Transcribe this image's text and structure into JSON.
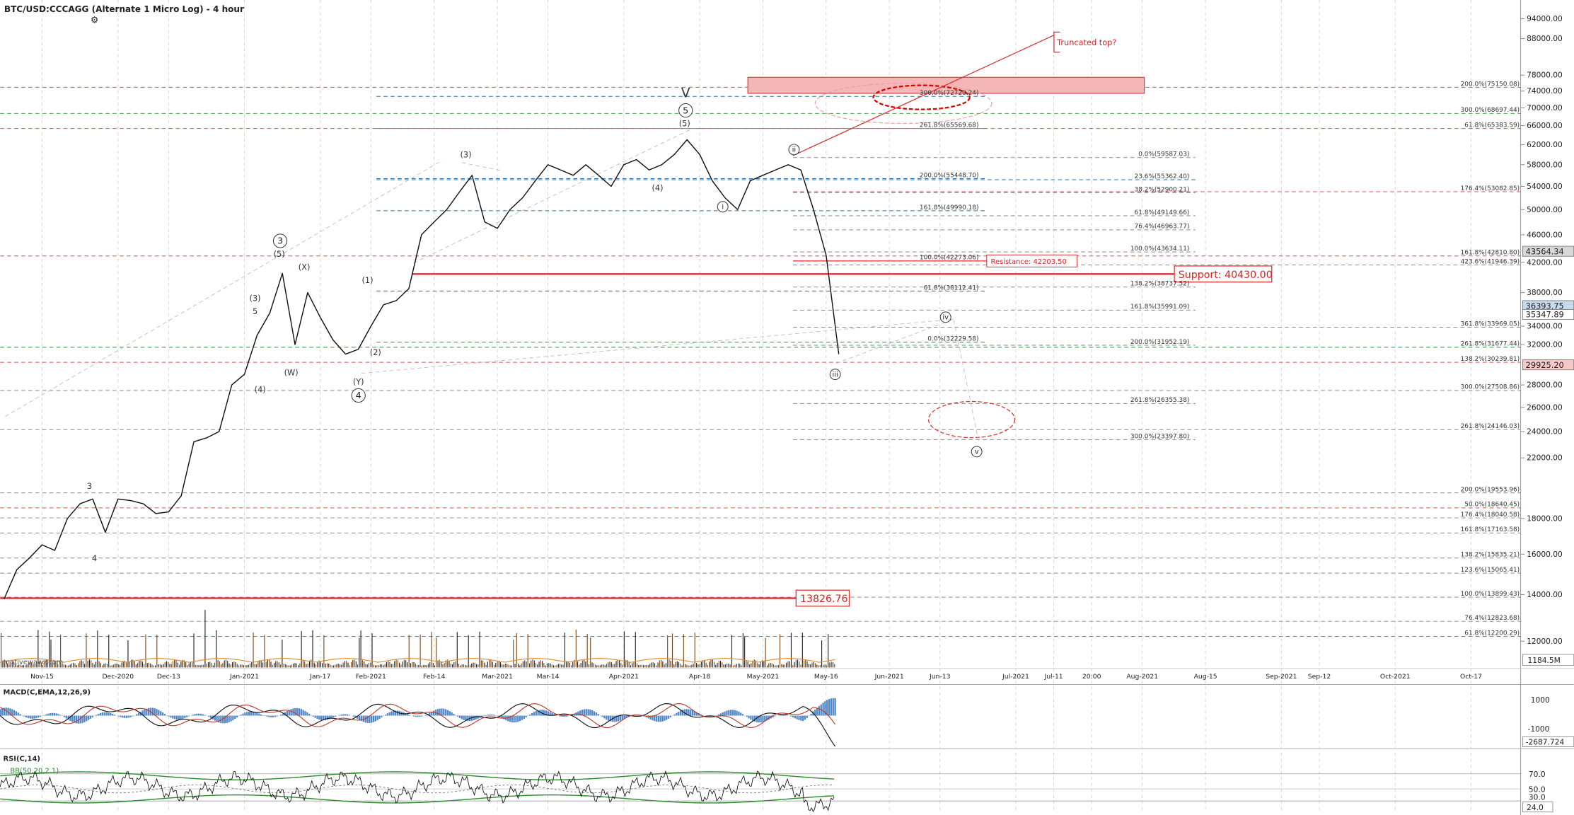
{
  "chart_data": {
    "type": "line",
    "title": "BTC/USD:CCCAGG (Alternate 1 Micro Log) - 4 hour",
    "log_scale": true,
    "grid": true,
    "color": "#111111",
    "categories": [
      null,
      null,
      null,
      "Nov-15",
      null,
      null,
      null,
      null,
      null,
      "Dec-2020",
      null,
      null,
      null,
      "Dec-13",
      null,
      null,
      null,
      null,
      null,
      "Jan-2021",
      null,
      null,
      null,
      null,
      null,
      "Jan-17",
      null,
      null,
      null,
      "Feb-2021",
      null,
      null,
      null,
      null,
      "Feb-14",
      null,
      null,
      null,
      null,
      "Mar-2021",
      null,
      null,
      null,
      "Mar-14",
      null,
      null,
      null,
      null,
      null,
      "Apr-2021",
      null,
      null,
      null,
      null,
      null,
      "Apr-18",
      null,
      null,
      null,
      null,
      "May-2021",
      null,
      null,
      null,
      null,
      "May-16",
      null,
      null,
      null,
      null,
      "Jun-2021",
      null,
      null,
      null,
      "Jun-13",
      null,
      null,
      null,
      null,
      null,
      "Jul-2021",
      null,
      null,
      "Jul-11",
      null,
      null,
      "20:00",
      null,
      null,
      null,
      "Aug-2021",
      null,
      null,
      null,
      null,
      "Aug-15",
      null,
      null,
      null,
      null,
      null,
      "Sep-2021",
      null,
      null,
      "Sep-12",
      null,
      null,
      null,
      null,
      null,
      "Oct-2021",
      null,
      null,
      null,
      null,
      null,
      "Oct-17",
      null,
      null,
      null
    ],
    "values": [
      13800,
      15200,
      15800,
      16500,
      16200,
      18000,
      18900,
      19200,
      17200,
      19200,
      19100,
      18900,
      18300,
      18400,
      19400,
      23200,
      23500,
      24000,
      28000,
      29000,
      33000,
      35500,
      40500,
      32000,
      38000,
      35000,
      32500,
      31000,
      31500,
      34000,
      36500,
      37000,
      38500,
      46000,
      48000,
      50000,
      53000,
      56000,
      48000,
      47000,
      50000,
      52000,
      55000,
      58000,
      57000,
      56000,
      58000,
      56000,
      54000,
      58000,
      59000,
      57000,
      58000,
      60000,
      63000,
      60000,
      55000,
      52000,
      50000,
      55000,
      56000,
      57000,
      58000,
      57000,
      50000,
      43000,
      31000,
      null,
      null,
      null,
      null,
      null,
      null,
      null,
      null,
      null,
      null,
      null,
      null,
      null,
      null,
      null,
      null,
      null,
      null,
      null,
      null,
      null,
      null,
      null,
      null,
      null,
      null,
      null,
      null,
      null,
      null,
      null,
      null,
      null,
      null,
      null,
      null,
      null,
      null,
      null,
      null,
      null,
      null,
      null,
      null,
      null,
      null,
      null,
      null,
      null,
      null,
      null,
      null,
      null
    ],
    "ylim": [
      11000,
      100000
    ],
    "yticks": [
      {
        "value": 94000,
        "label": "94000.00"
      },
      {
        "value": 88000,
        "label": "88000.00"
      },
      {
        "value": 78000,
        "label": "78000.00"
      },
      {
        "value": 74000,
        "label": "74000.00"
      },
      {
        "value": 70000,
        "label": "70000.00"
      },
      {
        "value": 66000,
        "label": "66000.00"
      },
      {
        "value": 62000,
        "label": "62000.00"
      },
      {
        "value": 58000,
        "label": "58000.00"
      },
      {
        "value": 54000,
        "label": "54000.00"
      },
      {
        "value": 50000,
        "label": "50000.00"
      },
      {
        "value": 46000,
        "label": "46000.00"
      },
      {
        "value": 42000,
        "label": "42000.00"
      },
      {
        "value": 38000,
        "label": "38000.00"
      },
      {
        "value": 34000,
        "label": "34000.00"
      },
      {
        "value": 32000,
        "label": "32000.00"
      },
      {
        "value": 28000,
        "label": "28000.00"
      },
      {
        "value": 26000,
        "label": "26000.00"
      },
      {
        "value": 24000,
        "label": "24000.00"
      },
      {
        "value": 22000,
        "label": "22000.00"
      },
      {
        "value": 18000,
        "label": "18000.00"
      },
      {
        "value": 16000,
        "label": "16000.00"
      },
      {
        "value": 14000,
        "label": "14000.00"
      },
      {
        "value": 12000,
        "label": "12000.00"
      }
    ],
    "price_markers": [
      {
        "value": 43564.34,
        "label": "43564.34",
        "color": "#d8d8d8"
      },
      {
        "value": 36393.75,
        "label": "36393.75",
        "color": "#c9d9ee"
      },
      {
        "value": 35347.89,
        "label": "35347.89",
        "color": "#ffffff"
      },
      {
        "value": 29925.2,
        "label": "29925.20",
        "color": "#f6c9c9"
      }
    ]
  },
  "watermark": "motivewave.com",
  "volume_label": "1184.5M",
  "fib_labels": [
    "200.0%(75150.08)",
    "300.0%(68697.44)",
    "61.8%(65383.59)",
    "176.4%(53082.85)",
    "161.8%(42810.80)",
    "423.6%(41946.39)",
    "361.8%(33969.05)",
    "261.8%(31677.44)",
    "138.2%(30239.81)",
    "300.0%(27508.86)",
    "261.8%(24146.03)",
    "200.0%(19553.96)",
    "50.0%(18640.45)",
    "176.4%(18040.58)",
    "161.8%(17163.58)",
    "138.2%(15835.21)",
    "123.6%(15065.41)",
    "100.0%(13899.43)",
    "76.4%(12823.68)",
    "61.8%(12200.29)",
    "0.0%(59587.03)",
    "23.6%(55362.40)",
    "38.2%(52900.21)",
    "61.8%(49149.66)",
    "76.4%(46963.77)",
    "100.0%(43634.11)",
    "138.2%(38737.52)",
    "161.8%(35991.09)",
    "200.0%(31952.19)",
    "261.8%(26355.38)",
    "300.0%(23397.80)",
    "300.0%(72720.24)",
    "261.8%(65569.68)",
    "200.0%(55448.70)",
    "161.8%(49990.18)",
    "100.0%(42273.06)",
    "61.8%(38112.41)",
    "0.0%(32229.58)"
  ],
  "wave_labels": [
    "V",
    "5",
    "(5)",
    "(3)",
    "(4)",
    "ii",
    "i",
    "iii",
    "iv",
    "v",
    "3",
    "(5)",
    "(X)",
    "(3)",
    "5",
    "(1)",
    "(2)",
    "(W)",
    "(4)",
    "(Y)",
    "4",
    "3",
    "4"
  ],
  "annotations": {
    "truncated": "Truncated top?",
    "resistance": "Resistance: 42203.50",
    "support": "Support: 40430.00",
    "low": "13826.76"
  },
  "macd": {
    "title": "MACD(C,EMA,12,26,9)",
    "ticks": [
      "1000",
      "-1000"
    ],
    "marker": "-2687.724"
  },
  "rsi": {
    "title": "RSI(C,14)",
    "bb": "BB(50,20,2.1)",
    "ticks": [
      "70.0",
      "50.0",
      "30.0"
    ],
    "marker": "24.0"
  }
}
